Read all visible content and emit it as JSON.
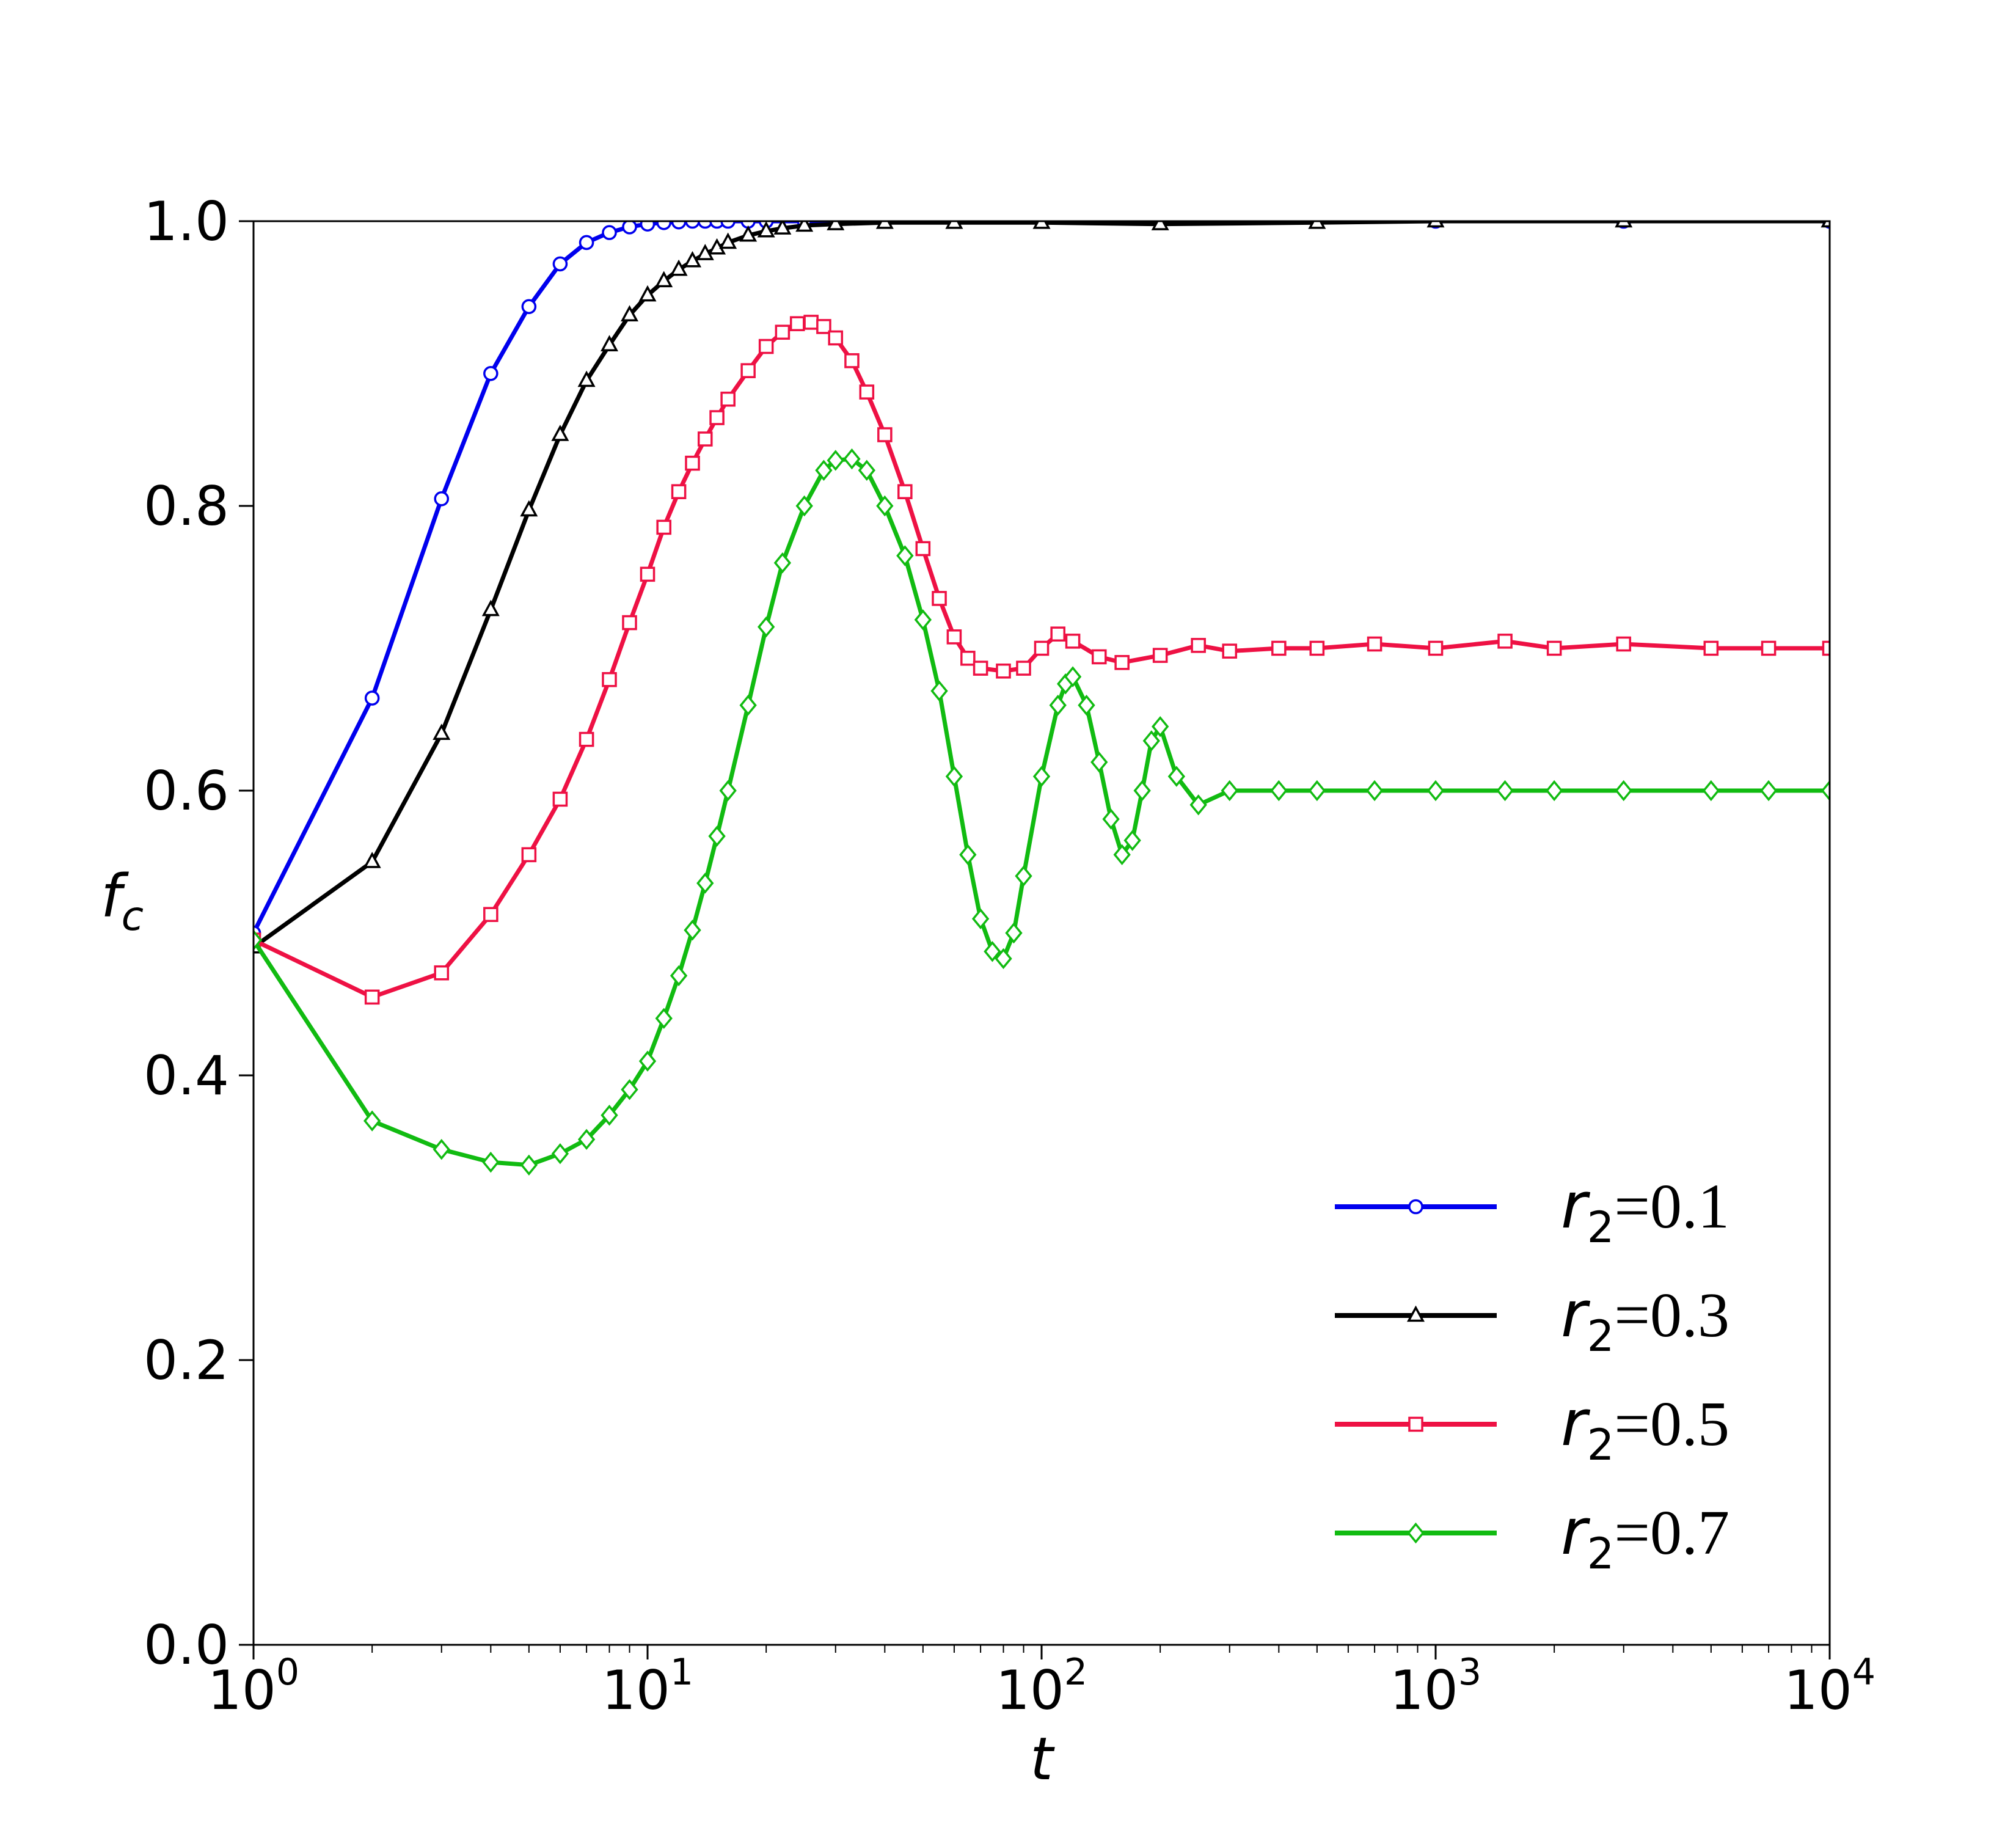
{
  "chart_data": {
    "type": "line",
    "xlabel": "t",
    "ylabel": "f",
    "ylabel_subscript": "c",
    "xscale": "log",
    "xlim": [
      1,
      10000
    ],
    "ylim": [
      0.0,
      1.0
    ],
    "x_ticks": [
      {
        "base": "10",
        "exp": "0",
        "value": 1
      },
      {
        "base": "10",
        "exp": "1",
        "value": 10
      },
      {
        "base": "10",
        "exp": "2",
        "value": 100
      },
      {
        "base": "10",
        "exp": "3",
        "value": 1000
      },
      {
        "base": "10",
        "exp": "4",
        "value": 10000
      }
    ],
    "y_ticks": [
      "0.0",
      "0.2",
      "0.4",
      "0.6",
      "0.8",
      "1.0"
    ],
    "grid": false,
    "legend_position": "lower-right",
    "series": [
      {
        "name": "r2=0.1",
        "label_var": "r",
        "label_sub": "2",
        "label_value": "=0.1",
        "color": "#0000ee",
        "marker": "circle",
        "x": [
          1,
          2,
          3,
          4,
          5,
          6,
          7,
          8,
          9,
          10,
          11,
          12,
          13,
          14,
          15,
          16,
          18,
          20,
          25,
          30,
          40,
          60,
          100,
          200,
          500,
          1000,
          3000,
          10000
        ],
        "y": [
          0.5,
          0.665,
          0.805,
          0.893,
          0.94,
          0.97,
          0.985,
          0.992,
          0.996,
          0.998,
          0.999,
          0.9995,
          1.0,
          1.0,
          1.0,
          1.0,
          1.0,
          1.0,
          1.0,
          1.0,
          1.0,
          1.0,
          1.0,
          1.0,
          1.0,
          1.0,
          1.0,
          1.0
        ]
      },
      {
        "name": "r2=0.3",
        "label_var": "r",
        "label_sub": "2",
        "label_value": "=0.3",
        "color": "#000000",
        "marker": "triangle",
        "x": [
          1,
          2,
          3,
          4,
          5,
          6,
          7,
          8,
          9,
          10,
          11,
          12,
          13,
          14,
          15,
          16,
          18,
          20,
          22,
          25,
          30,
          40,
          60,
          100,
          200,
          500,
          1000,
          3000,
          10000
        ],
        "y": [
          0.49,
          0.55,
          0.64,
          0.727,
          0.797,
          0.85,
          0.888,
          0.913,
          0.934,
          0.948,
          0.958,
          0.966,
          0.972,
          0.977,
          0.981,
          0.985,
          0.99,
          0.993,
          0.995,
          0.997,
          0.998,
          0.999,
          0.999,
          0.999,
          0.998,
          0.999,
          1.0,
          1.0,
          1.0
        ]
      },
      {
        "name": "r2=0.5",
        "label_var": "r",
        "label_sub": "2",
        "label_value": "=0.5",
        "color": "#ee1144",
        "marker": "square",
        "x": [
          1,
          2,
          3,
          4,
          5,
          6,
          7,
          8,
          9,
          10,
          11,
          12,
          13,
          14,
          15,
          16,
          18,
          20,
          22,
          24,
          26,
          28,
          30,
          33,
          36,
          40,
          45,
          50,
          55,
          60,
          65,
          70,
          80,
          90,
          100,
          110,
          120,
          140,
          160,
          200,
          250,
          300,
          400,
          500,
          700,
          1000,
          1500,
          2000,
          3000,
          5000,
          7000,
          10000
        ],
        "y": [
          0.495,
          0.455,
          0.472,
          0.513,
          0.555,
          0.594,
          0.636,
          0.678,
          0.718,
          0.752,
          0.785,
          0.81,
          0.83,
          0.847,
          0.862,
          0.875,
          0.895,
          0.912,
          0.922,
          0.928,
          0.929,
          0.926,
          0.918,
          0.902,
          0.88,
          0.85,
          0.81,
          0.77,
          0.735,
          0.708,
          0.693,
          0.686,
          0.684,
          0.686,
          0.7,
          0.71,
          0.705,
          0.694,
          0.69,
          0.695,
          0.702,
          0.698,
          0.7,
          0.7,
          0.703,
          0.7,
          0.705,
          0.7,
          0.703,
          0.7,
          0.7,
          0.7
        ]
      },
      {
        "name": "r2=0.7",
        "label_var": "r",
        "label_sub": "2",
        "label_value": "=0.7",
        "color": "#11bb11",
        "marker": "diamond",
        "x": [
          1,
          2,
          3,
          4,
          5,
          6,
          7,
          8,
          9,
          10,
          11,
          12,
          13,
          14,
          15,
          16,
          18,
          20,
          22,
          25,
          28,
          30,
          33,
          36,
          40,
          45,
          50,
          55,
          60,
          65,
          70,
          75,
          80,
          85,
          90,
          100,
          110,
          115,
          120,
          130,
          140,
          150,
          160,
          170,
          180,
          190,
          200,
          220,
          250,
          300,
          400,
          500,
          700,
          1000,
          1500,
          2000,
          3000,
          5000,
          7000,
          10000
        ],
        "y": [
          0.495,
          0.368,
          0.348,
          0.339,
          0.337,
          0.345,
          0.355,
          0.372,
          0.39,
          0.41,
          0.44,
          0.47,
          0.502,
          0.535,
          0.568,
          0.6,
          0.66,
          0.715,
          0.76,
          0.8,
          0.825,
          0.832,
          0.833,
          0.825,
          0.8,
          0.765,
          0.72,
          0.67,
          0.61,
          0.555,
          0.51,
          0.487,
          0.482,
          0.5,
          0.54,
          0.61,
          0.66,
          0.675,
          0.68,
          0.66,
          0.62,
          0.58,
          0.555,
          0.565,
          0.6,
          0.635,
          0.645,
          0.61,
          0.59,
          0.6,
          0.6,
          0.6,
          0.6,
          0.6,
          0.6,
          0.6,
          0.6,
          0.6,
          0.6,
          0.6
        ]
      }
    ]
  }
}
